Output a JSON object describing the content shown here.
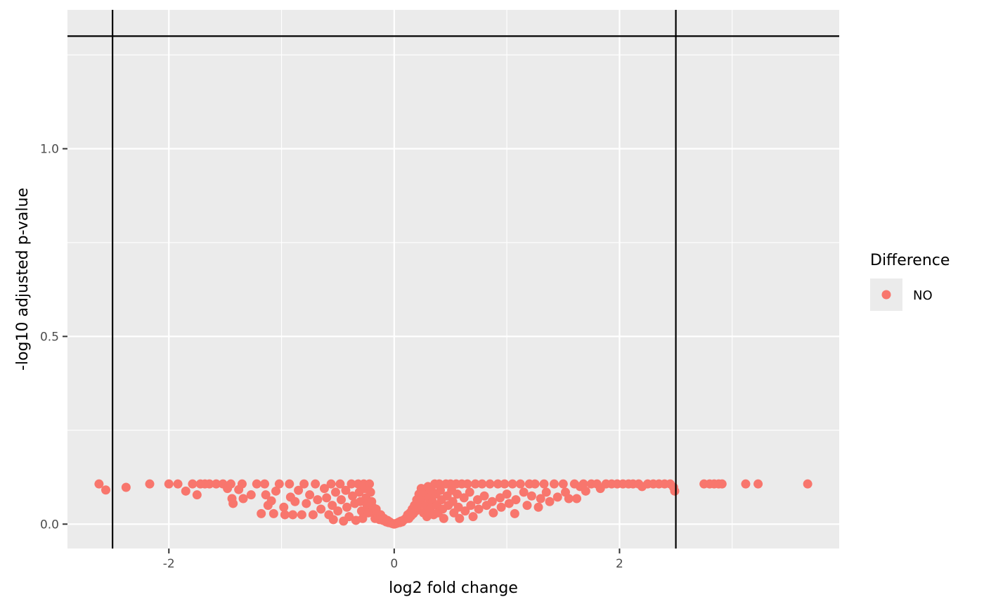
{
  "chart_data": {
    "type": "scatter",
    "title": "",
    "xlabel": "log2 fold change",
    "ylabel": "-log10 adjusted p-value",
    "xlim": [
      -2.9,
      3.95
    ],
    "ylim": [
      -0.065,
      1.37
    ],
    "x_ticks": [
      {
        "value": -2,
        "label": "-2"
      },
      {
        "value": 0,
        "label": "0"
      },
      {
        "value": 2,
        "label": "2"
      }
    ],
    "y_ticks": [
      {
        "value": 0,
        "label": "0.0"
      },
      {
        "value": 0.5,
        "label": "0.5"
      },
      {
        "value": 1,
        "label": "1.0"
      }
    ],
    "x_minor_grid": [
      -3,
      -1,
      1,
      3
    ],
    "y_minor_grid": [
      0.25,
      0.75,
      1.25
    ],
    "grid": true,
    "reference_lines": {
      "vertical": [
        -2.5,
        2.5
      ],
      "horizontal": [
        1.3
      ]
    },
    "legend": {
      "title": "Difference",
      "position": "right",
      "entries": [
        {
          "label": "NO",
          "color": "#F8766D"
        }
      ]
    },
    "series": [
      {
        "name": "NO",
        "color": "#F8766D",
        "points": [
          [
            -2.62,
            0.107
          ],
          [
            -2.56,
            0.091
          ],
          [
            -2.38,
            0.098
          ],
          [
            -2.17,
            0.107
          ],
          [
            -2.0,
            0.107
          ],
          [
            -1.92,
            0.107
          ],
          [
            -1.85,
            0.088
          ],
          [
            -1.79,
            0.107
          ],
          [
            -1.75,
            0.078
          ],
          [
            -1.72,
            0.107
          ],
          [
            -1.68,
            0.107
          ],
          [
            -1.64,
            0.107
          ],
          [
            -1.58,
            0.107
          ],
          [
            -1.52,
            0.107
          ],
          [
            -1.48,
            0.095
          ],
          [
            -1.45,
            0.107
          ],
          [
            -1.44,
            0.068
          ],
          [
            -1.43,
            0.055
          ],
          [
            -1.38,
            0.092
          ],
          [
            -1.35,
            0.107
          ],
          [
            -1.34,
            0.068
          ],
          [
            -1.27,
            0.078
          ],
          [
            -1.22,
            0.107
          ],
          [
            -1.18,
            0.028
          ],
          [
            -1.15,
            0.107
          ],
          [
            -1.14,
            0.078
          ],
          [
            -1.12,
            0.05
          ],
          [
            -1.09,
            0.062
          ],
          [
            -1.07,
            0.028
          ],
          [
            -1.05,
            0.088
          ],
          [
            -1.02,
            0.107
          ],
          [
            -0.98,
            0.045
          ],
          [
            -0.97,
            0.025
          ],
          [
            -0.93,
            0.107
          ],
          [
            -0.92,
            0.072
          ],
          [
            -0.9,
            0.025
          ],
          [
            -0.88,
            0.06
          ],
          [
            -0.85,
            0.09
          ],
          [
            -0.82,
            0.025
          ],
          [
            -0.8,
            0.107
          ],
          [
            -0.78,
            0.055
          ],
          [
            -0.75,
            0.078
          ],
          [
            -0.72,
            0.025
          ],
          [
            -0.7,
            0.107
          ],
          [
            -0.68,
            0.065
          ],
          [
            -0.65,
            0.04
          ],
          [
            -0.62,
            0.095
          ],
          [
            -0.6,
            0.07
          ],
          [
            -0.58,
            0.025
          ],
          [
            -0.56,
            0.107
          ],
          [
            -0.55,
            0.05
          ],
          [
            -0.54,
            0.012
          ],
          [
            -0.52,
            0.085
          ],
          [
            -0.5,
            0.035
          ],
          [
            -0.48,
            0.107
          ],
          [
            -0.47,
            0.065
          ],
          [
            -0.45,
            0.008
          ],
          [
            -0.43,
            0.09
          ],
          [
            -0.42,
            0.045
          ],
          [
            -0.4,
            0.02
          ],
          [
            -0.38,
            0.107
          ],
          [
            -0.37,
            0.075
          ],
          [
            -0.35,
            0.055
          ],
          [
            -0.34,
            0.01
          ],
          [
            -0.32,
            0.107
          ],
          [
            -0.31,
            0.085
          ],
          [
            -0.3,
            0.06
          ],
          [
            -0.29,
            0.035
          ],
          [
            -0.28,
            0.015
          ],
          [
            -0.27,
            0.107
          ],
          [
            -0.26,
            0.095
          ],
          [
            -0.25,
            0.07
          ],
          [
            -0.24,
            0.05
          ],
          [
            -0.23,
            0.03
          ],
          [
            -0.22,
            0.107
          ],
          [
            -0.21,
            0.085
          ],
          [
            -0.2,
            0.06
          ],
          [
            -0.19,
            0.045
          ],
          [
            -0.18,
            0.03
          ],
          [
            -0.17,
            0.015
          ],
          [
            -0.16,
            0.04
          ],
          [
            -0.15,
            0.028
          ],
          [
            -0.14,
            0.02
          ],
          [
            -0.13,
            0.012
          ],
          [
            -0.12,
            0.025
          ],
          [
            -0.11,
            0.016
          ],
          [
            -0.1,
            0.01
          ],
          [
            -0.09,
            0.015
          ],
          [
            -0.08,
            0.008
          ],
          [
            -0.07,
            0.006
          ],
          [
            -0.06,
            0.01
          ],
          [
            -0.05,
            0.004
          ],
          [
            -0.04,
            0.006
          ],
          [
            -0.03,
            0.003
          ],
          [
            -0.02,
            0.002
          ],
          [
            -0.01,
            0.001
          ],
          [
            0.0,
            0.0
          ],
          [
            0.01,
            0.001
          ],
          [
            0.02,
            0.002
          ],
          [
            0.03,
            0.003
          ],
          [
            0.04,
            0.005
          ],
          [
            0.05,
            0.004
          ],
          [
            0.06,
            0.008
          ],
          [
            0.07,
            0.006
          ],
          [
            0.08,
            0.01
          ],
          [
            0.09,
            0.012
          ],
          [
            0.1,
            0.014
          ],
          [
            0.11,
            0.018
          ],
          [
            0.12,
            0.025
          ],
          [
            0.13,
            0.015
          ],
          [
            0.14,
            0.03
          ],
          [
            0.15,
            0.022
          ],
          [
            0.16,
            0.04
          ],
          [
            0.17,
            0.028
          ],
          [
            0.18,
            0.05
          ],
          [
            0.19,
            0.035
          ],
          [
            0.2,
            0.065
          ],
          [
            0.21,
            0.045
          ],
          [
            0.22,
            0.08
          ],
          [
            0.23,
            0.055
          ],
          [
            0.24,
            0.095
          ],
          [
            0.25,
            0.07
          ],
          [
            0.26,
            0.03
          ],
          [
            0.27,
            0.085
          ],
          [
            0.28,
            0.05
          ],
          [
            0.29,
            0.02
          ],
          [
            0.3,
            0.1
          ],
          [
            0.31,
            0.07
          ],
          [
            0.32,
            0.04
          ],
          [
            0.33,
            0.09
          ],
          [
            0.34,
            0.06
          ],
          [
            0.35,
            0.025
          ],
          [
            0.36,
            0.107
          ],
          [
            0.37,
            0.08
          ],
          [
            0.38,
            0.05
          ],
          [
            0.39,
            0.03
          ],
          [
            0.4,
            0.107
          ],
          [
            0.41,
            0.09
          ],
          [
            0.42,
            0.065
          ],
          [
            0.43,
            0.04
          ],
          [
            0.44,
            0.015
          ],
          [
            0.46,
            0.107
          ],
          [
            0.47,
            0.075
          ],
          [
            0.48,
            0.05
          ],
          [
            0.5,
            0.107
          ],
          [
            0.51,
            0.09
          ],
          [
            0.52,
            0.06
          ],
          [
            0.53,
            0.03
          ],
          [
            0.55,
            0.107
          ],
          [
            0.56,
            0.08
          ],
          [
            0.57,
            0.045
          ],
          [
            0.58,
            0.015
          ],
          [
            0.6,
            0.107
          ],
          [
            0.62,
            0.07
          ],
          [
            0.63,
            0.035
          ],
          [
            0.65,
            0.107
          ],
          [
            0.67,
            0.085
          ],
          [
            0.68,
            0.05
          ],
          [
            0.7,
            0.02
          ],
          [
            0.72,
            0.107
          ],
          [
            0.74,
            0.065
          ],
          [
            0.75,
            0.04
          ],
          [
            0.78,
            0.107
          ],
          [
            0.8,
            0.075
          ],
          [
            0.82,
            0.05
          ],
          [
            0.85,
            0.107
          ],
          [
            0.87,
            0.06
          ],
          [
            0.88,
            0.03
          ],
          [
            0.92,
            0.107
          ],
          [
            0.94,
            0.07
          ],
          [
            0.95,
            0.045
          ],
          [
            0.98,
            0.107
          ],
          [
            1.0,
            0.08
          ],
          [
            1.02,
            0.055
          ],
          [
            1.05,
            0.107
          ],
          [
            1.07,
            0.028
          ],
          [
            1.08,
            0.065
          ],
          [
            1.12,
            0.107
          ],
          [
            1.15,
            0.085
          ],
          [
            1.18,
            0.05
          ],
          [
            1.2,
            0.107
          ],
          [
            1.22,
            0.075
          ],
          [
            1.25,
            0.107
          ],
          [
            1.28,
            0.045
          ],
          [
            1.3,
            0.068
          ],
          [
            1.33,
            0.107
          ],
          [
            1.35,
            0.085
          ],
          [
            1.38,
            0.06
          ],
          [
            1.42,
            0.107
          ],
          [
            1.45,
            0.072
          ],
          [
            1.5,
            0.107
          ],
          [
            1.52,
            0.085
          ],
          [
            1.55,
            0.068
          ],
          [
            1.6,
            0.107
          ],
          [
            1.62,
            0.068
          ],
          [
            1.65,
            0.1
          ],
          [
            1.68,
            0.107
          ],
          [
            1.7,
            0.088
          ],
          [
            1.75,
            0.107
          ],
          [
            1.8,
            0.107
          ],
          [
            1.83,
            0.095
          ],
          [
            1.88,
            0.107
          ],
          [
            1.93,
            0.107
          ],
          [
            1.98,
            0.107
          ],
          [
            2.03,
            0.107
          ],
          [
            2.08,
            0.107
          ],
          [
            2.12,
            0.107
          ],
          [
            2.17,
            0.107
          ],
          [
            2.2,
            0.1
          ],
          [
            2.25,
            0.107
          ],
          [
            2.3,
            0.107
          ],
          [
            2.35,
            0.107
          ],
          [
            2.4,
            0.107
          ],
          [
            2.45,
            0.107
          ],
          [
            2.48,
            0.098
          ],
          [
            2.49,
            0.088
          ],
          [
            2.75,
            0.107
          ],
          [
            2.8,
            0.107
          ],
          [
            2.84,
            0.107
          ],
          [
            2.88,
            0.107
          ],
          [
            2.91,
            0.107
          ],
          [
            3.12,
            0.107
          ],
          [
            3.23,
            0.107
          ],
          [
            3.67,
            0.107
          ]
        ]
      }
    ]
  },
  "colors": {
    "panel_background": "#EBEBEB",
    "grid_major": "#FFFFFF",
    "reference_line": "#000000"
  }
}
